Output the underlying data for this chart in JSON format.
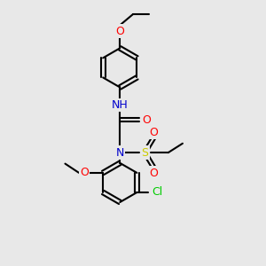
{
  "background_color": "#e8e8e8",
  "bond_color": "#000000",
  "atom_colors": {
    "O": "#ff0000",
    "N": "#0000cc",
    "S": "#cccc00",
    "Cl": "#00cc00",
    "C": "#000000",
    "H": "#000000"
  }
}
